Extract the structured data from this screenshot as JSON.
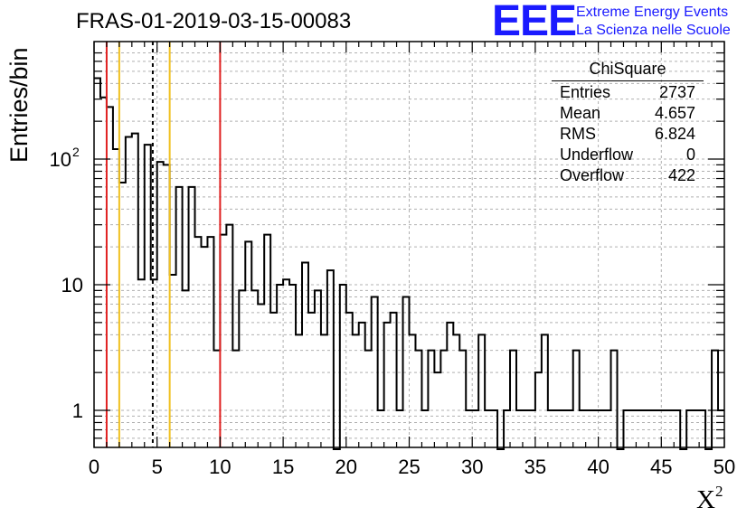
{
  "title": "FRAS-01-2019-03-15-00083",
  "logo": {
    "mark": "EEE",
    "line1": "Extreme Energy Events",
    "line2": "La Scienza nelle Scuole"
  },
  "stats": {
    "title": "ChiSquare",
    "rows": [
      {
        "key": "Entries",
        "value": "2737"
      },
      {
        "key": "Mean",
        "value": "4.657"
      },
      {
        "key": "RMS",
        "value": "6.824"
      },
      {
        "key": "Underflow",
        "value": "0"
      },
      {
        "key": "Overflow",
        "value": "422"
      }
    ]
  },
  "chart_data": {
    "type": "histogram",
    "xlabel": "X",
    "xlabel_sup": "2",
    "ylabel": "Entries/bin",
    "xlim": [
      0,
      50
    ],
    "ylim": [
      0.5,
      800
    ],
    "yscale": "log",
    "grid": true,
    "x_ticks": [
      0,
      5,
      10,
      15,
      20,
      25,
      30,
      35,
      40,
      45,
      50
    ],
    "x_tick_labels": [
      "0",
      "5",
      "10",
      "15",
      "20",
      "25",
      "30",
      "35",
      "40",
      "45",
      "50"
    ],
    "y_ticks": [
      1,
      10,
      100
    ],
    "y_tick_labels": [
      "1",
      "10",
      "10",
      "2"
    ],
    "bin_width": 0.5,
    "bin_contents": [
      440,
      310,
      260,
      120,
      65,
      150,
      160,
      11,
      130,
      11,
      95,
      90,
      12,
      60,
      9,
      60,
      24,
      20,
      24,
      3,
      25,
      30,
      3,
      9,
      22,
      9,
      7,
      25,
      6,
      10,
      11,
      10,
      4,
      15,
      6,
      9,
      4,
      13,
      0.4,
      10,
      6,
      4,
      5,
      3,
      8,
      1,
      5,
      6,
      1,
      8,
      4,
      3,
      1,
      3,
      2,
      3,
      5,
      4,
      3,
      1,
      1,
      4,
      1,
      1,
      0.4,
      1,
      3,
      1,
      1,
      1,
      2,
      4,
      1,
      1,
      1,
      1,
      3,
      1,
      1,
      1,
      1,
      1,
      3,
      0.4,
      1,
      1,
      1,
      1,
      1,
      1,
      1,
      1,
      1,
      0.4,
      1,
      1,
      1,
      0.4,
      3,
      1
    ],
    "reference_lines": [
      {
        "x": 1,
        "color": "#e02020",
        "style": "solid"
      },
      {
        "x": 2,
        "color": "#f0c020",
        "style": "solid"
      },
      {
        "x": 4.657,
        "color": "#000000",
        "style": "dashed"
      },
      {
        "x": 6,
        "color": "#f0c020",
        "style": "solid"
      },
      {
        "x": 10,
        "color": "#e02020",
        "style": "solid"
      }
    ]
  }
}
